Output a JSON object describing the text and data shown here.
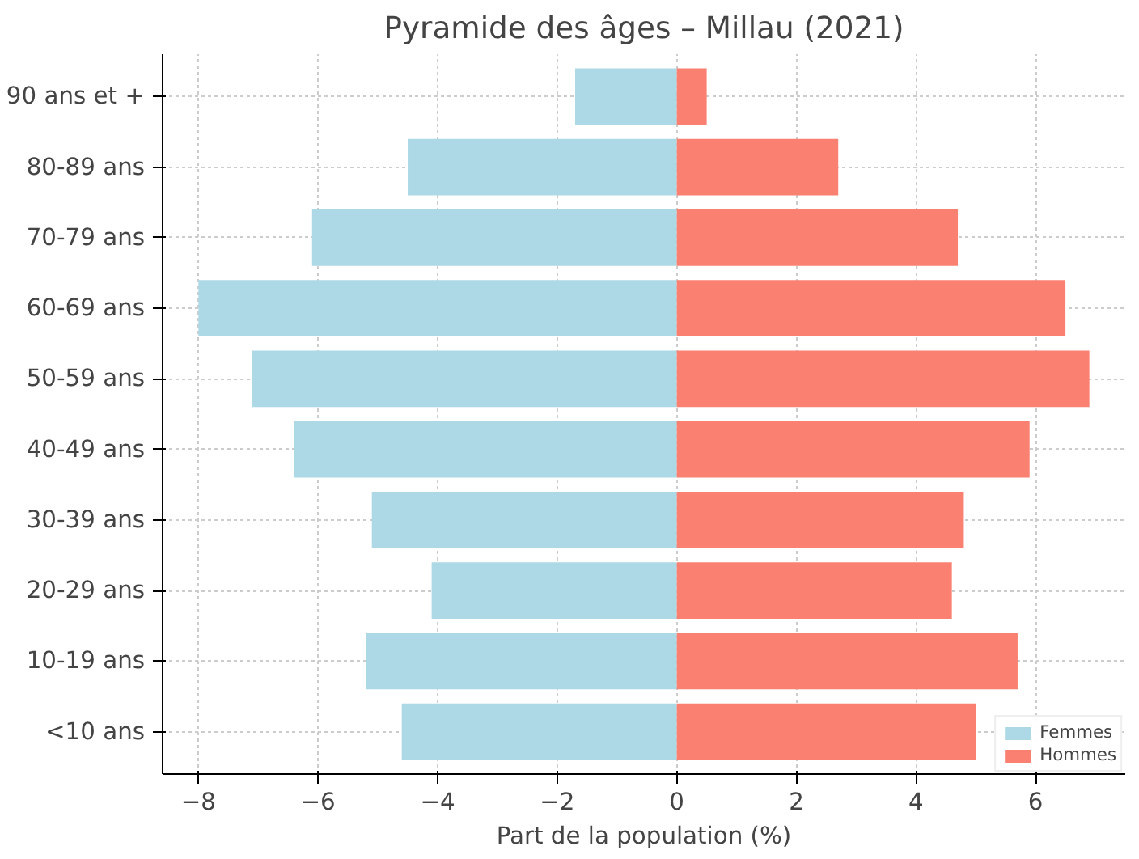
{
  "chart_data": {
    "type": "bar",
    "orientation": "horizontal",
    "title": "Pyramide des âges – Millau (2021)",
    "xlabel": "Part de la population (%)",
    "categories": [
      "90 ans et +",
      "80-89 ans",
      "70-79 ans",
      "60-69 ans",
      "50-59 ans",
      "40-49 ans",
      "30-39 ans",
      "20-29 ans",
      "10-19 ans",
      "<10 ans"
    ],
    "series": [
      {
        "name": "Femmes",
        "color": "#add8e6",
        "values": [
          -1.7,
          -4.5,
          -6.1,
          -8.0,
          -7.1,
          -6.4,
          -5.1,
          -4.1,
          -5.2,
          -4.6
        ]
      },
      {
        "name": "Hommes",
        "color": "#fa8072",
        "values": [
          0.5,
          2.7,
          4.7,
          6.5,
          6.9,
          5.9,
          4.8,
          4.6,
          5.7,
          5.0
        ]
      }
    ],
    "xlim": [
      -8.6,
      7.5
    ],
    "xticks": [
      {
        "value": -8,
        "label": "−8"
      },
      {
        "value": -6,
        "label": "−6"
      },
      {
        "value": -4,
        "label": "−4"
      },
      {
        "value": -2,
        "label": "−2"
      },
      0,
      2,
      4,
      6
    ],
    "stacked": true,
    "grid": true,
    "legend": "bottom right"
  }
}
